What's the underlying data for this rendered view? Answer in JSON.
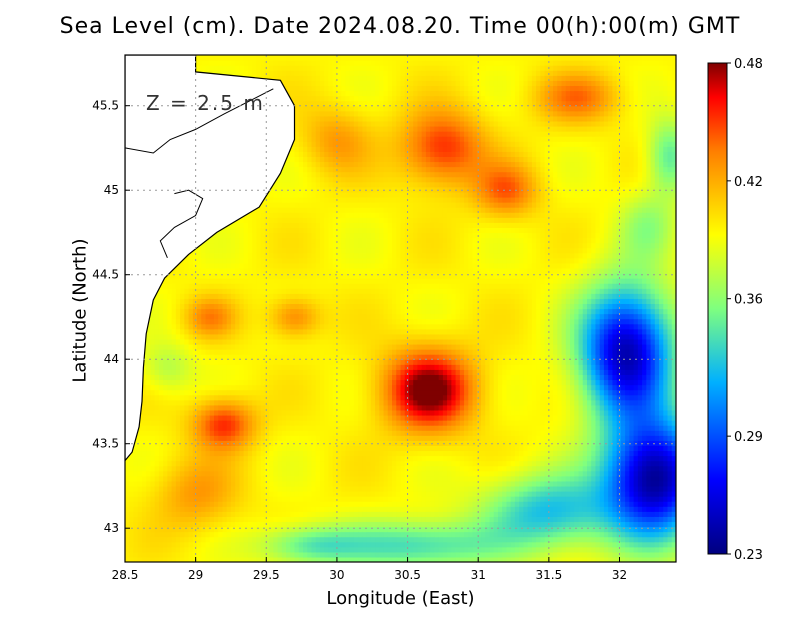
{
  "title": "Sea Level (cm). Date 2024.08.20. Time 00(h):00(m) GMT",
  "depth_label": "Z = 2.5 m",
  "chart_data": {
    "type": "heatmap",
    "variable": "Sea Level (cm)",
    "xlabel": "Longitude (East)",
    "ylabel": "Latitude (North)",
    "xlim": [
      28.5,
      32.4
    ],
    "ylim": [
      42.8,
      45.8
    ],
    "xticks": [
      28.5,
      29,
      29.5,
      30,
      30.5,
      31,
      31.5,
      32
    ],
    "yticks": [
      43,
      43.5,
      44,
      44.5,
      45,
      45.5
    ],
    "colorbar": {
      "min": 0.23,
      "max": 0.48,
      "ticks": [
        0.48,
        0.42,
        0.36,
        0.29,
        0.23
      ]
    },
    "grid": true,
    "features": [
      {
        "name": "maximum west-central",
        "lon": 30.65,
        "lat": 43.82,
        "value": 0.48
      },
      {
        "name": "high southwest",
        "lon": 29.2,
        "lat": 43.62,
        "value": 0.45
      },
      {
        "name": "high north",
        "lon": 30.75,
        "lat": 45.25,
        "value": 0.45
      },
      {
        "name": "minimum southeast",
        "lon": 32.25,
        "lat": 43.3,
        "value": 0.23
      },
      {
        "name": "low southeast",
        "lon": 32.05,
        "lat": 44.0,
        "value": 0.25
      }
    ]
  }
}
